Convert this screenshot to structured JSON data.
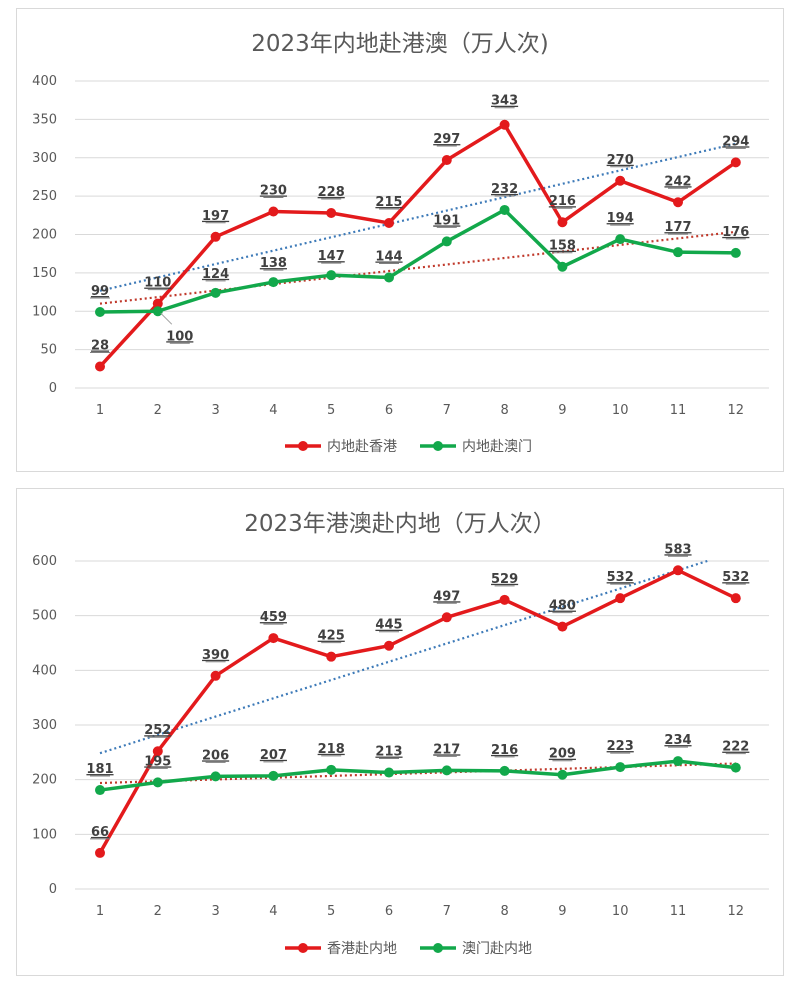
{
  "chart_data": [
    {
      "type": "line",
      "title": "2023年内地赴港澳（万人次)",
      "categories": [
        "1",
        "2",
        "3",
        "4",
        "5",
        "6",
        "7",
        "8",
        "9",
        "10",
        "11",
        "12"
      ],
      "ylim": [
        0,
        400
      ],
      "yticks": [
        "0",
        "50",
        "100",
        "150",
        "200",
        "250",
        "300",
        "350",
        "400"
      ],
      "grid": true,
      "legend_position": "bottom",
      "trendlines": "linear dotted",
      "series": [
        {
          "name": "内地赴香港",
          "color": "#e31a1c",
          "trend_color": "#3d7ab8",
          "values": [
            28,
            110,
            197,
            230,
            228,
            215,
            297,
            343,
            216,
            270,
            242,
            294
          ]
        },
        {
          "name": "内地赴澳门",
          "color": "#12a84b",
          "trend_color": "#c0392b",
          "values": [
            99,
            100,
            124,
            138,
            147,
            144,
            191,
            232,
            158,
            194,
            177,
            176
          ]
        }
      ]
    },
    {
      "type": "line",
      "title": "2023年港澳赴内地（万人次）",
      "categories": [
        "1",
        "2",
        "3",
        "4",
        "5",
        "6",
        "7",
        "8",
        "9",
        "10",
        "11",
        "12"
      ],
      "ylim": [
        0,
        600
      ],
      "yticks": [
        "0",
        "100",
        "200",
        "300",
        "400",
        "500",
        "600"
      ],
      "grid": true,
      "legend_position": "bottom",
      "trendlines": "linear dotted",
      "series": [
        {
          "name": "香港赴内地",
          "color": "#e31a1c",
          "trend_color": "#3d7ab8",
          "values": [
            66,
            252,
            390,
            459,
            425,
            445,
            497,
            529,
            480,
            532,
            583,
            532
          ]
        },
        {
          "name": "澳门赴内地",
          "color": "#12a84b",
          "trend_color": "#c0392b",
          "values": [
            181,
            195,
            206,
            207,
            218,
            213,
            217,
            216,
            209,
            223,
            234,
            222
          ]
        }
      ]
    }
  ]
}
